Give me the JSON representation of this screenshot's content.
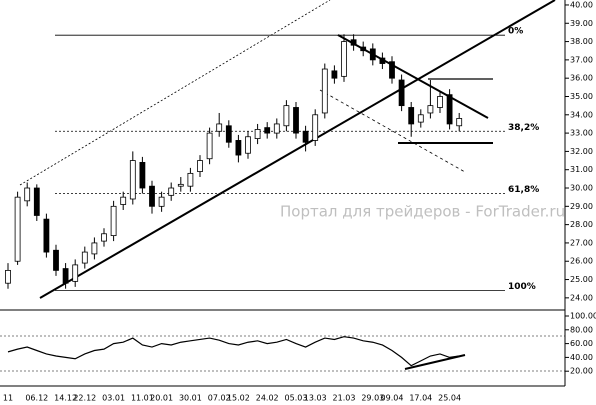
{
  "chart_data": [
    {
      "type": "candlestick",
      "categories": [
        "11",
        null,
        null,
        "06.12",
        null,
        null,
        "14.12",
        null,
        "22.12",
        null,
        null,
        "03.01",
        null,
        null,
        "11.01",
        null,
        "20.01",
        null,
        null,
        "30.01",
        null,
        null,
        "07.02",
        null,
        "15.02",
        null,
        null,
        "24.02",
        null,
        null,
        "05.03",
        null,
        "13.03",
        null,
        null,
        "21.03",
        null,
        null,
        "29.03",
        null,
        "09.04",
        null,
        null,
        "17.04",
        null,
        null,
        "25.04",
        null
      ],
      "open": [
        24.8,
        26,
        29.3,
        30,
        28.3,
        26.6,
        25.6,
        24.9,
        25.9,
        26.4,
        27.1,
        27.4,
        29.1,
        29.4,
        31.4,
        30.1,
        29,
        29.6,
        30.1,
        30.1,
        30.9,
        31.6,
        33.1,
        33.4,
        32.6,
        31.9,
        32.7,
        33.3,
        33,
        33.4,
        34.4,
        33.1,
        32.6,
        34.1,
        36.4,
        36.1,
        38.1,
        37.7,
        37.6,
        37.1,
        36.9,
        35.9,
        34.4,
        33.6,
        34.1,
        34.4,
        35.1,
        33.4
      ],
      "high": [
        25.9,
        29.8,
        30.3,
        30.2,
        28.6,
        26.9,
        25.9,
        26.1,
        26.8,
        27.3,
        27.8,
        29.3,
        29.8,
        32,
        31.7,
        30.4,
        29.8,
        30.3,
        30.6,
        31.1,
        31.8,
        33.3,
        34.1,
        33.7,
        32.9,
        33.1,
        33.5,
        33.6,
        33.8,
        34.8,
        34.7,
        33.4,
        34.3,
        36.8,
        36.7,
        38.4,
        38.4,
        38,
        37.9,
        37.4,
        37.2,
        36.2,
        34.7,
        34.3,
        35.9,
        35.3,
        35.4,
        34.1
      ],
      "low": [
        24.5,
        25.8,
        29,
        28.2,
        26.2,
        25.2,
        24.5,
        24.6,
        25.6,
        26.1,
        26.8,
        27.1,
        28.8,
        29.1,
        29.7,
        28.6,
        28.7,
        29.3,
        29.8,
        29.8,
        30.6,
        31.3,
        32.8,
        32.2,
        31.4,
        31.6,
        32.4,
        32.7,
        32.7,
        33.1,
        32.7,
        32,
        32.3,
        33.8,
        35.7,
        35.8,
        37.5,
        37.2,
        36.7,
        36.5,
        35.7,
        34.2,
        32.8,
        33.3,
        33.8,
        34.1,
        33.2,
        33.1
      ],
      "close": [
        25.5,
        29.5,
        30,
        28.5,
        26.5,
        25.5,
        24.8,
        25.8,
        26.5,
        27,
        27.5,
        29,
        29.5,
        31.5,
        30,
        29,
        29.5,
        30,
        30.2,
        30.8,
        31.5,
        33,
        33.5,
        32.5,
        31.8,
        32.8,
        33.2,
        33,
        33.5,
        34.5,
        33,
        32.5,
        34,
        36.5,
        36,
        38,
        37.8,
        37.5,
        37,
        36.8,
        36,
        34.5,
        33.5,
        34,
        34.5,
        35,
        33.5,
        33.8
      ],
      "ylim": [
        23.5,
        40.2
      ],
      "yticks": [
        {
          "value": 24,
          "label": "24.00"
        },
        {
          "value": 25,
          "label": "25.00"
        },
        {
          "value": 26,
          "label": "26.00"
        },
        {
          "value": 27,
          "label": "27.00"
        },
        {
          "value": 28,
          "label": "28.00"
        },
        {
          "value": 29,
          "label": "29.00"
        },
        {
          "value": 30,
          "label": "30.00"
        },
        {
          "value": 31,
          "label": "31.00"
        },
        {
          "value": 32,
          "label": "32.00"
        },
        {
          "value": 33,
          "label": "33.00"
        },
        {
          "value": 34,
          "label": "34.00"
        },
        {
          "value": 35,
          "label": "35.00"
        },
        {
          "value": 36,
          "label": "36.00"
        },
        {
          "value": 37,
          "label": "37.00"
        },
        {
          "value": 38,
          "label": "38.00"
        },
        {
          "value": 39,
          "label": "39.00"
        },
        {
          "value": 40,
          "label": "40.00"
        }
      ],
      "levels": [
        {
          "value": 38.35,
          "label": "0%"
        },
        {
          "value": 33.1,
          "label": "38,2%"
        },
        {
          "value": 29.7,
          "label": "61,8%"
        },
        {
          "value": 24.4,
          "label": "100%"
        }
      ],
      "watermark": "Портал для трейдеров - ForTrader.ru"
    },
    {
      "type": "line",
      "values": [
        48,
        52,
        55,
        50,
        45,
        42,
        40,
        38,
        45,
        50,
        52,
        60,
        62,
        68,
        58,
        55,
        60,
        58,
        62,
        64,
        66,
        68,
        65,
        60,
        58,
        62,
        64,
        60,
        62,
        66,
        60,
        55,
        62,
        68,
        66,
        70,
        68,
        64,
        62,
        58,
        50,
        40,
        28,
        35,
        42,
        45,
        40,
        42
      ],
      "color": "#000000",
      "ylim": [
        0,
        100
      ],
      "yticks": [
        {
          "value": 20,
          "label": "20.00"
        },
        {
          "value": 40,
          "label": "40.00"
        },
        {
          "value": 60,
          "label": "60.00"
        },
        {
          "value": 80,
          "label": "80.00"
        },
        {
          "value": 100,
          "label": "100.00"
        }
      ]
    }
  ]
}
